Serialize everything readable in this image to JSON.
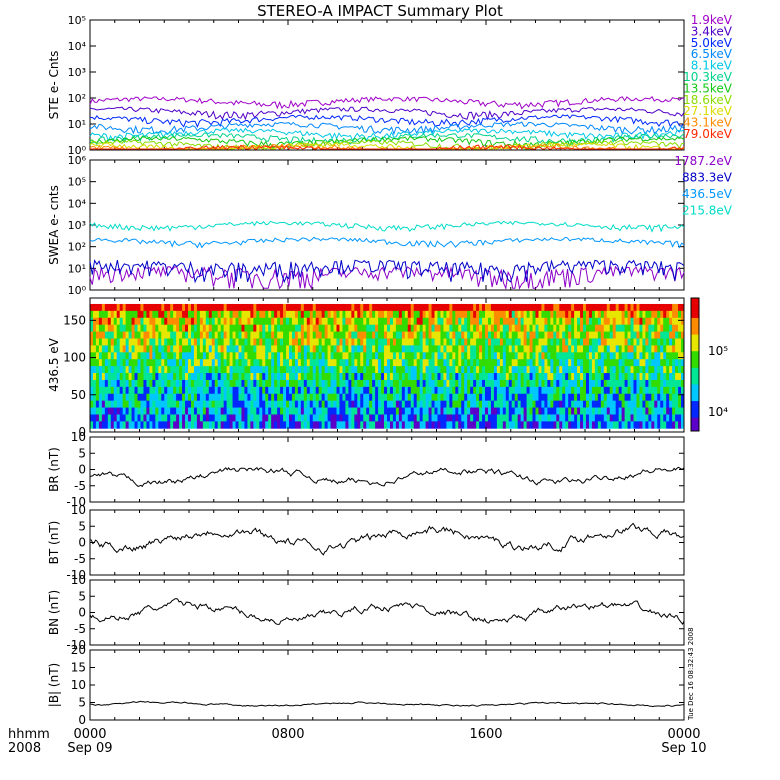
{
  "title": "STEREO-A IMPACT Summary Plot",
  "footer": {
    "left_line1": "hhmm",
    "left_line2": "2008",
    "ticks": [
      "0000",
      "0800",
      "1600",
      "0000"
    ],
    "date_left": "Sep 09",
    "date_right": "Sep 10",
    "timestamp": "Tue Dec 16 08:32:43 2008"
  },
  "chart_data": [
    {
      "type": "line",
      "name": "ste",
      "ylabel": "STE e- Cnts",
      "yscale": "log",
      "ylim": [
        1,
        100000
      ],
      "ytick_labels": [
        "10⁰",
        "10¹",
        "10²",
        "10³",
        "10⁴",
        "10⁵"
      ],
      "series": [
        {
          "name": "1.9keV",
          "color": "#a000c8",
          "level": 75
        },
        {
          "name": "3.4keV",
          "color": "#5000c8",
          "level": 30
        },
        {
          "name": "5.0keV",
          "color": "#0028ff",
          "level": 15
        },
        {
          "name": "6.5keV",
          "color": "#0088ff",
          "level": 8
        },
        {
          "name": "8.1keV",
          "color": "#00c8e6",
          "level": 4.5
        },
        {
          "name": "10.3keV",
          "color": "#00d28c",
          "level": 3
        },
        {
          "name": "13.5keV",
          "color": "#14c814",
          "level": 2.2
        },
        {
          "name": "18.6keV",
          "color": "#8cdc00",
          "level": 1.6
        },
        {
          "name": "27.1keV",
          "color": "#dcdc00",
          "level": 1.3
        },
        {
          "name": "43.1keV",
          "color": "#ff8c00",
          "level": 1.15
        },
        {
          "name": "79.0keV",
          "color": "#ff2800",
          "level": 1.05
        }
      ]
    },
    {
      "type": "line",
      "name": "swea",
      "ylabel": "SWEA e- cnts",
      "yscale": "log",
      "ylim": [
        1,
        1000000
      ],
      "ytick_labels": [
        "10⁰",
        "10¹",
        "10²",
        "10³",
        "10⁴",
        "10⁵",
        "10⁶"
      ],
      "series": [
        {
          "name": "1787.2eV",
          "color": "#8c00c8",
          "level": 6
        },
        {
          "name": "883.3eV",
          "color": "#0000c8",
          "level": 12
        },
        {
          "name": "436.5eV",
          "color": "#0096ff",
          "level": 180
        },
        {
          "name": "215.8eV",
          "color": "#00dcc8",
          "level": 1000
        }
      ]
    },
    {
      "type": "heatmap",
      "name": "pad",
      "ylabel": "436.5 eV",
      "ylim": [
        0,
        180
      ],
      "yticks": [
        0,
        50,
        100,
        150
      ],
      "colorbar_ticks": [
        "10⁵",
        "10⁴"
      ],
      "colorscale": [
        "#5a00c8",
        "#0028ff",
        "#00c8ff",
        "#00e696",
        "#32dc00",
        "#e6e600",
        "#ff8c00",
        "#e60000"
      ]
    },
    {
      "type": "line",
      "name": "br",
      "ylabel": "BR (nT)",
      "ylim": [
        -10,
        10
      ],
      "yticks": [
        -10,
        -5,
        0,
        5,
        10
      ],
      "mean": -2,
      "noise": 2.5
    },
    {
      "type": "line",
      "name": "bt",
      "ylabel": "BT (nT)",
      "ylim": [
        -10,
        10
      ],
      "yticks": [
        -10,
        -5,
        0,
        5,
        10
      ],
      "mean": 1.5,
      "noise": 3.5
    },
    {
      "type": "line",
      "name": "bn",
      "ylabel": "BN (nT)",
      "ylim": [
        -10,
        10
      ],
      "yticks": [
        -10,
        -5,
        0,
        5,
        10
      ],
      "mean": 0,
      "noise": 3
    },
    {
      "type": "line",
      "name": "babs",
      "ylabel": "|B| (nT)",
      "ylim": [
        0,
        20
      ],
      "yticks": [
        0,
        5,
        10,
        15,
        20
      ],
      "mean": 4.5,
      "noise": 0.6
    }
  ]
}
